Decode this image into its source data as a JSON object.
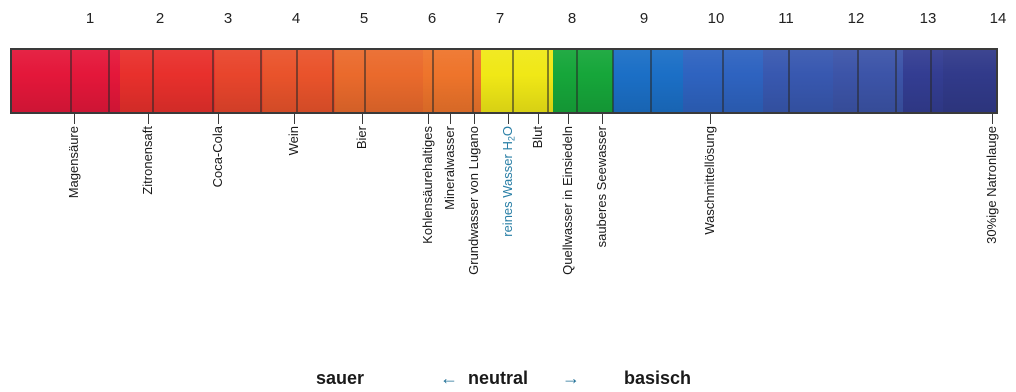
{
  "scale": {
    "numbers": [
      "1",
      "2",
      "3",
      "4",
      "5",
      "6",
      "7",
      "8",
      "9",
      "10",
      "11",
      "12",
      "13",
      "14"
    ]
  },
  "colors": {
    "segments": [
      "#e4173a",
      "#e8302c",
      "#e8452c",
      "#e9532b",
      "#ea6a2c",
      "#ee742b",
      "#f0e816",
      "#16a63a",
      "#1b6fc6",
      "#2e63c0",
      "#3858b0",
      "#3c54a8",
      "#333d92",
      "#313a8a"
    ],
    "neutral_label": "#2a7fa6",
    "arrow": "#1f6f96"
  },
  "labels": [
    {
      "text": "Magensäure"
    },
    {
      "text": "Zitronensaft"
    },
    {
      "text": "Coca-Cola"
    },
    {
      "text": "Wein"
    },
    {
      "text": "Bier"
    },
    {
      "text": "Kohlensäurehaltiges"
    },
    {
      "text": "Mineralwasser"
    },
    {
      "text": "Grundwasser von Lugano"
    },
    {
      "text": "reines Wasser H",
      "sub": "2",
      "suffix": "O"
    },
    {
      "text": "Blut"
    },
    {
      "text": "Quellwasser in Einsiedeln"
    },
    {
      "text": "sauberes Seewasser"
    },
    {
      "text": "Waschmittellösung"
    },
    {
      "text": "30%ige Natronlauge"
    }
  ],
  "legend": {
    "sauer": "sauer",
    "neutral": "neutral",
    "basisch": "basisch",
    "left_arrow": "←",
    "right_arrow": "→"
  }
}
